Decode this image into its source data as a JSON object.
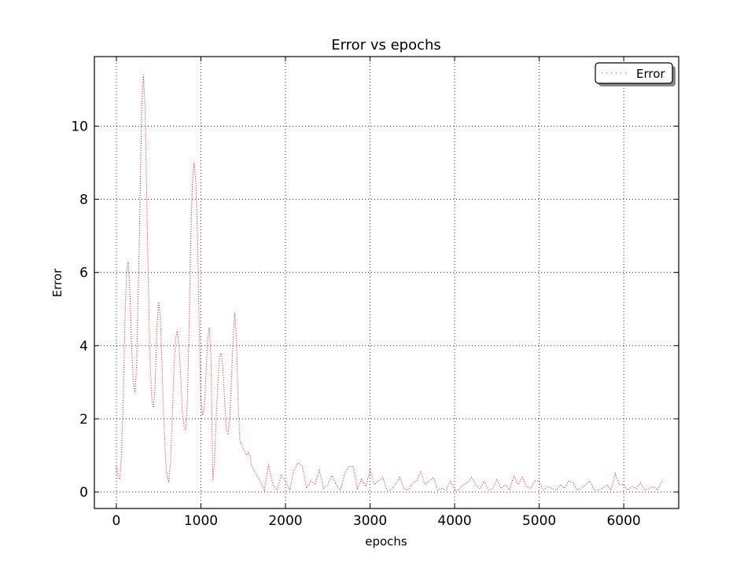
{
  "chart_data": {
    "type": "line",
    "title": "Error vs epochs",
    "x_label": "epochs",
    "y_label": "Error",
    "x": [
      0,
      20,
      40,
      60,
      80,
      100,
      120,
      140,
      160,
      180,
      200,
      220,
      240,
      260,
      280,
      300,
      320,
      340,
      360,
      380,
      400,
      420,
      440,
      460,
      480,
      500,
      520,
      540,
      560,
      580,
      600,
      620,
      640,
      660,
      680,
      700,
      720,
      740,
      760,
      780,
      800,
      820,
      840,
      860,
      880,
      900,
      920,
      940,
      960,
      980,
      1000,
      1020,
      1040,
      1060,
      1080,
      1100,
      1120,
      1140,
      1160,
      1180,
      1200,
      1220,
      1240,
      1260,
      1280,
      1300,
      1320,
      1340,
      1360,
      1380,
      1400,
      1420,
      1440,
      1460,
      1480,
      1500,
      1520,
      1540,
      1560,
      1580,
      1600,
      1650,
      1700,
      1750,
      1800,
      1850,
      1900,
      1950,
      2000,
      2050,
      2100,
      2150,
      2200,
      2250,
      2300,
      2350,
      2400,
      2450,
      2500,
      2550,
      2600,
      2650,
      2700,
      2750,
      2800,
      2850,
      2900,
      2950,
      3000,
      3050,
      3100,
      3150,
      3200,
      3250,
      3300,
      3350,
      3400,
      3450,
      3500,
      3550,
      3600,
      3650,
      3700,
      3750,
      3800,
      3850,
      3900,
      3950,
      4000,
      4050,
      4100,
      4150,
      4200,
      4250,
      4300,
      4350,
      4400,
      4450,
      4500,
      4550,
      4600,
      4650,
      4700,
      4750,
      4800,
      4850,
      4900,
      4950,
      5000,
      5050,
      5100,
      5150,
      5200,
      5250,
      5300,
      5350,
      5400,
      5450,
      5500,
      5550,
      5600,
      5650,
      5700,
      5750,
      5800,
      5850,
      5900,
      5950,
      6000,
      6050,
      6100,
      6150,
      6200,
      6250,
      6300,
      6350,
      6400,
      6450
    ],
    "series": [
      {
        "name": "Error",
        "color": "#ff0000",
        "values": [
          0.7,
          0.4,
          0.35,
          1.0,
          2.5,
          4.5,
          6.0,
          6.3,
          5.5,
          4.0,
          3.0,
          2.7,
          3.5,
          5.5,
          8.0,
          10.5,
          11.4,
          10.5,
          8.0,
          5.5,
          3.5,
          2.5,
          2.3,
          3.0,
          4.5,
          5.2,
          4.8,
          3.5,
          2.0,
          1.0,
          0.4,
          0.3,
          0.8,
          2.0,
          3.3,
          4.2,
          4.4,
          4.0,
          3.2,
          2.2,
          1.8,
          1.7,
          2.5,
          4.5,
          7.0,
          8.5,
          9.0,
          8.5,
          7.0,
          4.5,
          2.5,
          2.1,
          2.3,
          3.2,
          4.2,
          4.5,
          3.6,
          0.3,
          0.8,
          2.0,
          3.0,
          3.7,
          3.8,
          3.4,
          2.5,
          1.7,
          1.6,
          2.0,
          3.0,
          4.2,
          4.9,
          4.2,
          2.5,
          1.4,
          1.3,
          1.2,
          1.1,
          1.0,
          1.1,
          1.0,
          0.7,
          0.5,
          0.3,
          0.05,
          0.75,
          0.2,
          0.05,
          0.45,
          0.3,
          0.05,
          0.6,
          0.8,
          0.7,
          0.1,
          0.3,
          0.2,
          0.6,
          0.1,
          0.2,
          0.45,
          0.2,
          0.05,
          0.5,
          0.7,
          0.7,
          0.1,
          0.35,
          0.15,
          0.6,
          0.2,
          0.3,
          0.4,
          0.05,
          0.05,
          0.2,
          0.4,
          0.1,
          0.05,
          0.25,
          0.3,
          0.55,
          0.2,
          0.3,
          0.4,
          0.05,
          0.1,
          0.05,
          0.3,
          0.05,
          0.05,
          0.2,
          0.25,
          0.4,
          0.2,
          0.1,
          0.3,
          0.05,
          0.1,
          0.35,
          0.1,
          0.2,
          0.05,
          0.45,
          0.2,
          0.4,
          0.15,
          0.1,
          0.3,
          0.3,
          0.05,
          0.15,
          0.1,
          0.05,
          0.2,
          0.1,
          0.3,
          0.25,
          0.05,
          0.1,
          0.2,
          0.3,
          0.05,
          0.05,
          0.1,
          0.2,
          0.05,
          0.5,
          0.2,
          0.2,
          0.05,
          0.15,
          0.1,
          0.25,
          0.05,
          0.1,
          0.15,
          0.05,
          0.3
        ]
      }
    ],
    "xlim": [
      -260,
      6650
    ],
    "ylim": [
      -0.45,
      11.9
    ],
    "xticks": [
      0,
      1000,
      2000,
      3000,
      4000,
      5000,
      6000
    ],
    "yticks": [
      0,
      2,
      4,
      6,
      8,
      10
    ],
    "grid": true,
    "legend": "upper right"
  }
}
